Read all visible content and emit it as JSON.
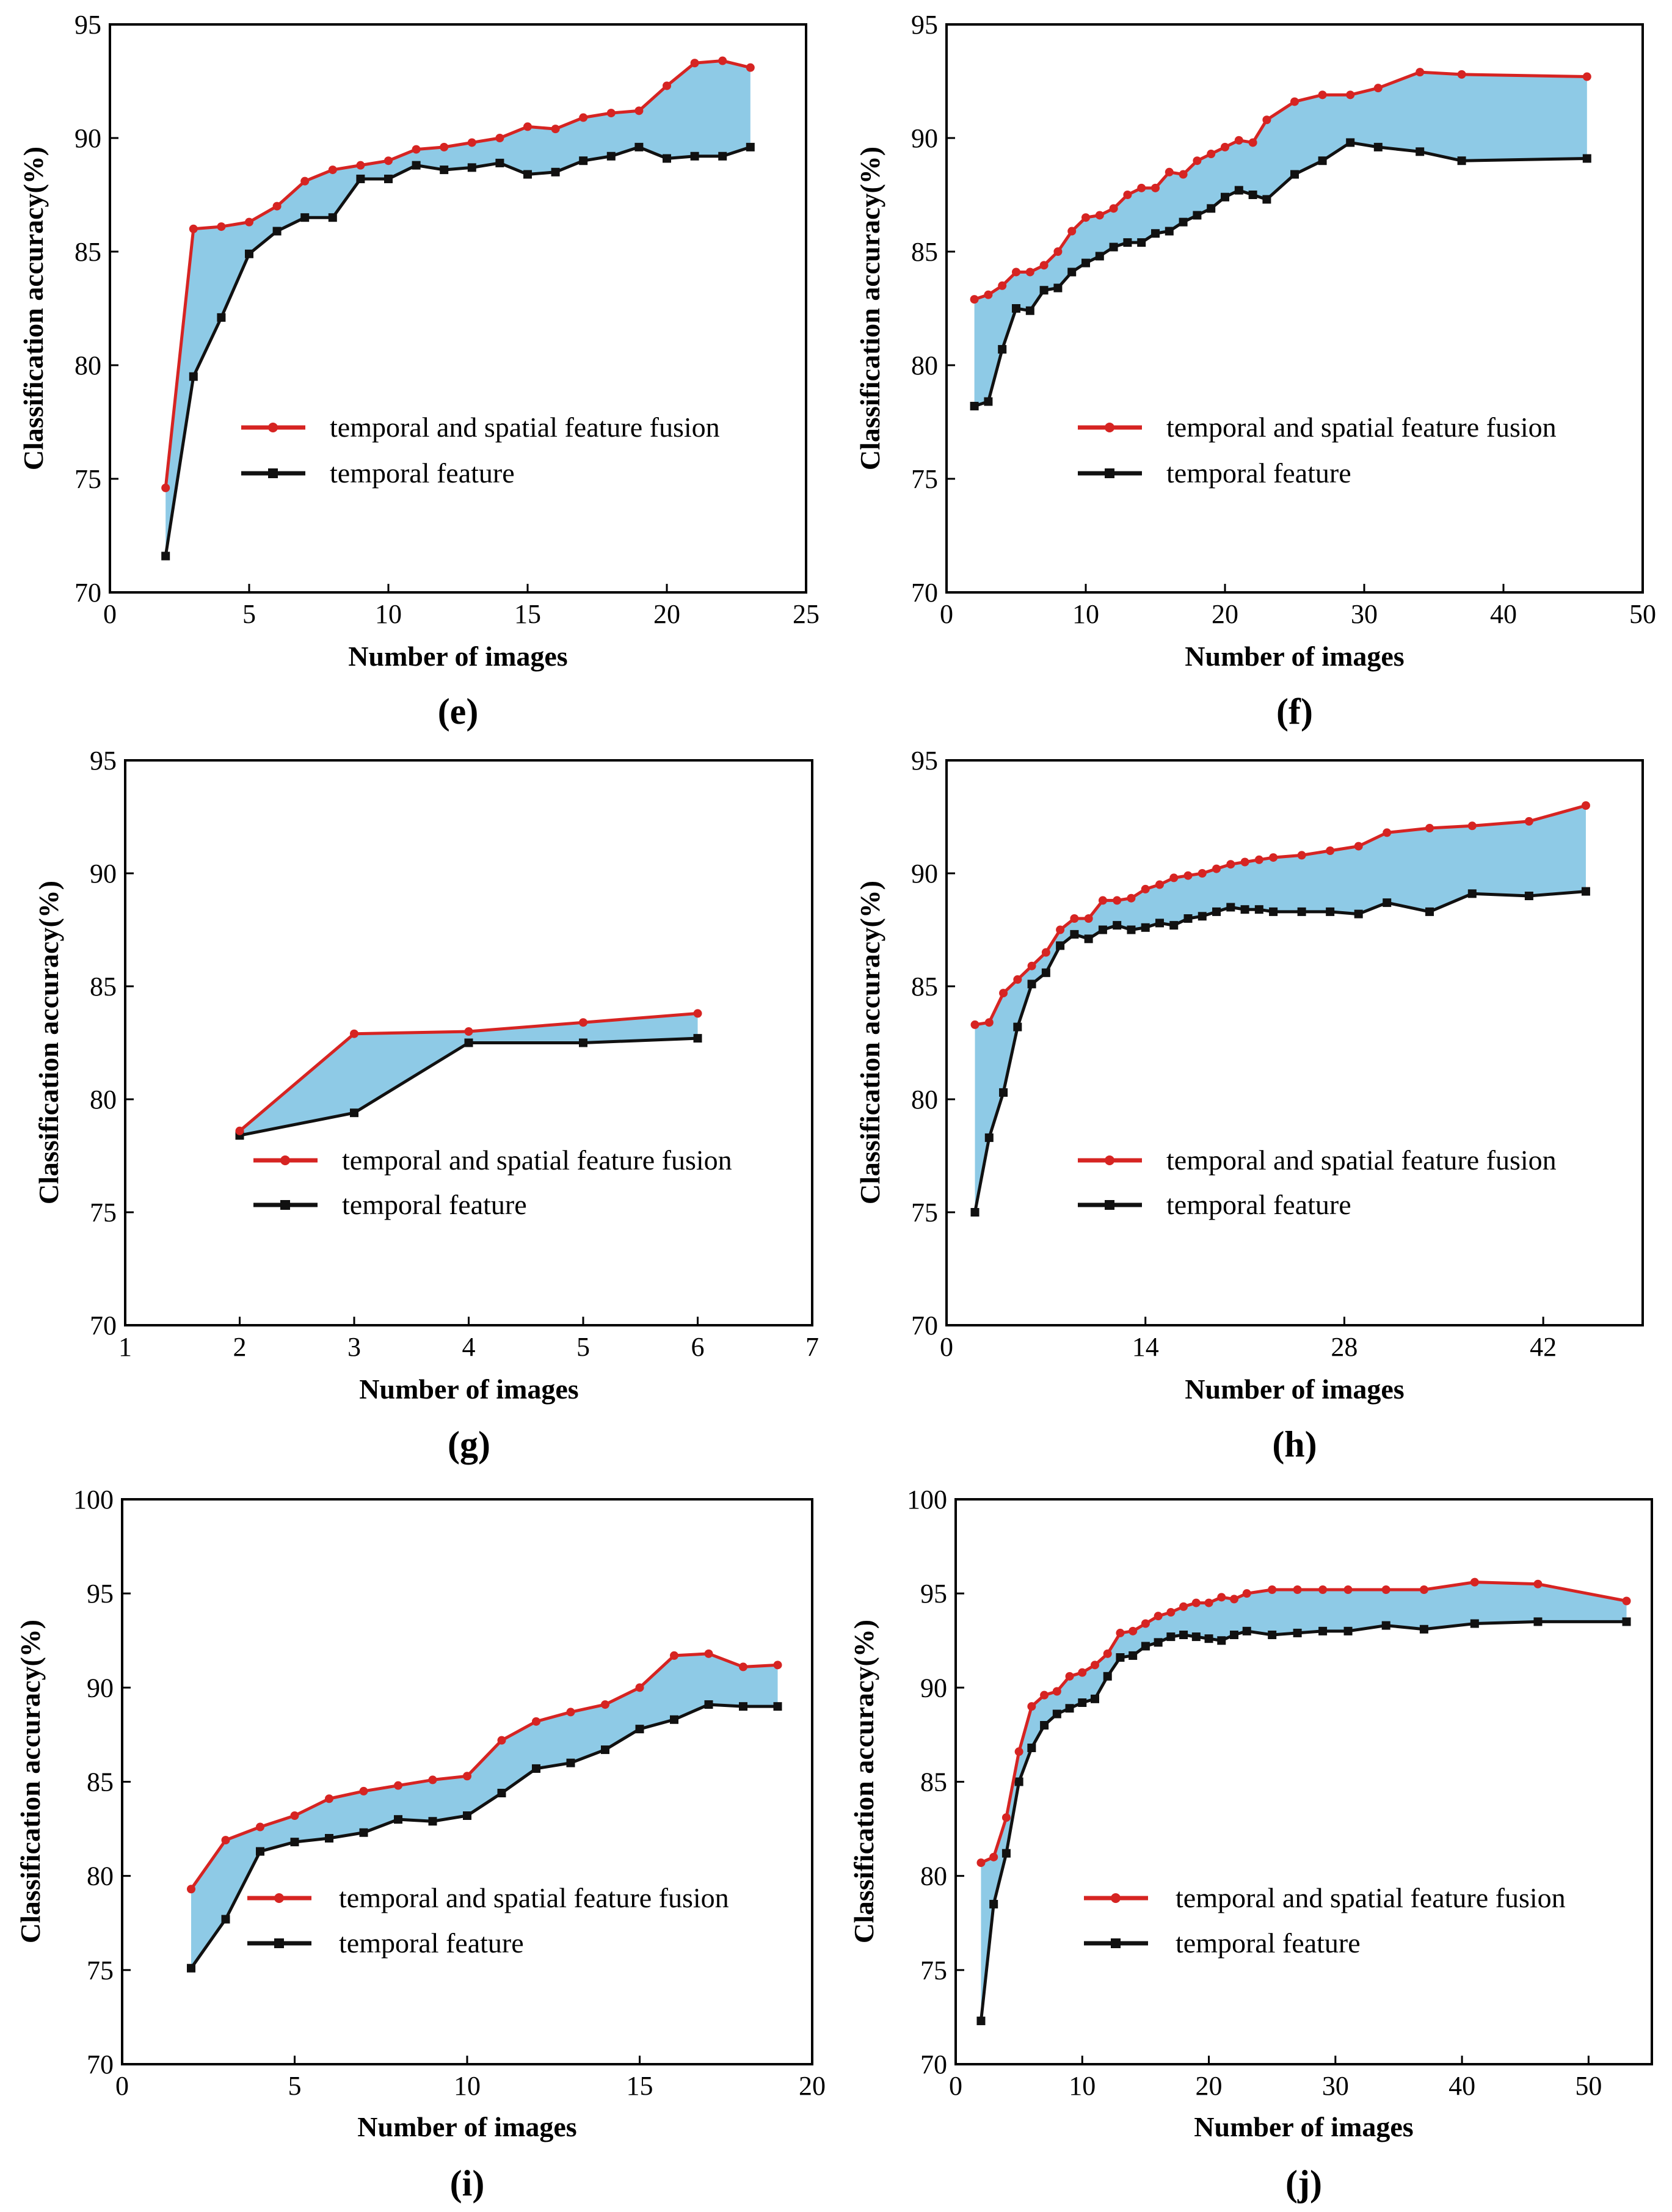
{
  "figure": {
    "colors": {
      "fusion": "#d62422",
      "temporal": "#111111",
      "band": "#8ecae6",
      "frame": "#000000"
    }
  },
  "chart_data": [
    {
      "id": "e",
      "type": "line",
      "caption": "(e)",
      "xlabel": "Number of images",
      "ylabel": "Classification accuracy(%)",
      "xlim": [
        0,
        25
      ],
      "ylim": [
        70,
        95
      ],
      "xticks": [
        0,
        5,
        10,
        15,
        20,
        25
      ],
      "yticks": [
        70,
        75,
        80,
        85,
        90,
        95
      ],
      "grid": false,
      "legend_position": "lower-center",
      "fill_between": true,
      "series": [
        {
          "name": "temporal and spatial feature fusion",
          "marker": "circle",
          "x": [
            2,
            3,
            4,
            5,
            6,
            7,
            8,
            9,
            10,
            11,
            12,
            13,
            14,
            15,
            16,
            17,
            18,
            19,
            20,
            21,
            22,
            23
          ],
          "y": [
            74.6,
            86.0,
            86.1,
            86.3,
            87.0,
            88.1,
            88.6,
            88.8,
            89.0,
            89.5,
            89.6,
            89.8,
            90.0,
            90.5,
            90.4,
            90.9,
            91.1,
            91.2,
            92.3,
            93.3,
            93.4,
            93.1
          ]
        },
        {
          "name": "temporal feature",
          "marker": "square",
          "x": [
            2,
            3,
            4,
            5,
            6,
            7,
            8,
            9,
            10,
            11,
            12,
            13,
            14,
            15,
            16,
            17,
            18,
            19,
            20,
            21,
            22,
            23
          ],
          "y": [
            71.6,
            79.5,
            82.1,
            84.9,
            85.9,
            86.5,
            86.5,
            88.2,
            88.2,
            88.8,
            88.6,
            88.7,
            88.9,
            88.4,
            88.5,
            89.0,
            89.2,
            89.6,
            89.1,
            89.2,
            89.2,
            89.6
          ]
        }
      ]
    },
    {
      "id": "f",
      "type": "line",
      "caption": "(f)",
      "xlabel": "Number of images",
      "ylabel": "Classification accuracy(%)",
      "xlim": [
        0,
        50
      ],
      "ylim": [
        70,
        95
      ],
      "xticks": [
        0,
        10,
        20,
        30,
        40,
        50
      ],
      "yticks": [
        70,
        75,
        80,
        85,
        90,
        95
      ],
      "grid": false,
      "legend_position": "lower-center",
      "fill_between": true,
      "series": [
        {
          "name": "temporal and spatial feature fusion",
          "marker": "circle",
          "x": [
            2,
            3,
            4,
            5,
            6,
            7,
            8,
            9,
            10,
            11,
            12,
            13,
            14,
            15,
            16,
            17,
            18,
            19,
            20,
            21,
            22,
            23,
            25,
            27,
            29,
            31,
            34,
            37,
            46
          ],
          "y": [
            82.9,
            83.1,
            83.5,
            84.1,
            84.1,
            84.4,
            85.0,
            85.9,
            86.5,
            86.6,
            86.9,
            87.5,
            87.8,
            87.8,
            88.5,
            88.4,
            89.0,
            89.3,
            89.6,
            89.9,
            89.8,
            90.8,
            91.6,
            91.9,
            91.9,
            92.2,
            92.9,
            92.8,
            92.7
          ]
        },
        {
          "name": "temporal feature",
          "marker": "square",
          "x": [
            2,
            3,
            4,
            5,
            6,
            7,
            8,
            9,
            10,
            11,
            12,
            13,
            14,
            15,
            16,
            17,
            18,
            19,
            20,
            21,
            22,
            23,
            25,
            27,
            29,
            31,
            34,
            37,
            46
          ],
          "y": [
            78.2,
            78.4,
            80.7,
            82.5,
            82.4,
            83.3,
            83.4,
            84.1,
            84.5,
            84.8,
            85.2,
            85.4,
            85.4,
            85.8,
            85.9,
            86.3,
            86.6,
            86.9,
            87.4,
            87.7,
            87.5,
            87.3,
            88.4,
            89.0,
            89.8,
            89.6,
            89.4,
            89.0,
            89.1
          ]
        }
      ]
    },
    {
      "id": "g",
      "type": "line",
      "caption": "(g)",
      "xlabel": "Number of images",
      "ylabel": "Classification accuracy(%)",
      "xlim": [
        1,
        7
      ],
      "ylim": [
        70,
        95
      ],
      "xticks": [
        1,
        2,
        3,
        4,
        5,
        6,
        7
      ],
      "yticks": [
        70,
        75,
        80,
        85,
        90,
        95
      ],
      "grid": false,
      "legend_position": "lower-center",
      "fill_between": true,
      "series": [
        {
          "name": "temporal and spatial feature fusion",
          "marker": "circle",
          "x": [
            2,
            3,
            4,
            5,
            6
          ],
          "y": [
            78.6,
            82.9,
            83.0,
            83.4,
            83.8
          ]
        },
        {
          "name": "temporal feature",
          "marker": "square",
          "x": [
            2,
            3,
            4,
            5,
            6
          ],
          "y": [
            78.4,
            79.4,
            82.5,
            82.5,
            82.7
          ]
        }
      ]
    },
    {
      "id": "h",
      "type": "line",
      "caption": "(h)",
      "xlabel": "Number of images",
      "ylabel": "Classification accuracy(%)",
      "xlim": [
        0,
        49
      ],
      "ylim": [
        70,
        95
      ],
      "xticks": [
        0,
        14,
        28,
        42
      ],
      "yticks": [
        70,
        75,
        80,
        85,
        90,
        95
      ],
      "grid": false,
      "legend_position": "lower-center",
      "fill_between": true,
      "series": [
        {
          "name": "temporal and spatial feature fusion",
          "marker": "circle",
          "x": [
            2,
            3,
            4,
            5,
            6,
            7,
            8,
            9,
            10,
            11,
            12,
            13,
            14,
            15,
            16,
            17,
            18,
            19,
            20,
            21,
            22,
            23,
            25,
            27,
            29,
            31,
            34,
            37,
            41,
            45
          ],
          "y": [
            83.3,
            83.4,
            84.7,
            85.3,
            85.9,
            86.5,
            87.5,
            88.0,
            88.0,
            88.8,
            88.8,
            88.9,
            89.3,
            89.5,
            89.8,
            89.9,
            90.0,
            90.2,
            90.4,
            90.5,
            90.6,
            90.7,
            90.8,
            91.0,
            91.2,
            91.8,
            92.0,
            92.1,
            92.3,
            93.0
          ]
        },
        {
          "name": "temporal feature",
          "marker": "square",
          "x": [
            2,
            3,
            4,
            5,
            6,
            7,
            8,
            9,
            10,
            11,
            12,
            13,
            14,
            15,
            16,
            17,
            18,
            19,
            20,
            21,
            22,
            23,
            25,
            27,
            29,
            31,
            34,
            37,
            41,
            45
          ],
          "y": [
            75.0,
            78.3,
            80.3,
            83.2,
            85.1,
            85.6,
            86.8,
            87.3,
            87.1,
            87.5,
            87.7,
            87.5,
            87.6,
            87.8,
            87.7,
            88.0,
            88.1,
            88.3,
            88.5,
            88.4,
            88.4,
            88.3,
            88.3,
            88.3,
            88.2,
            88.7,
            88.3,
            89.1,
            89.0,
            89.2
          ]
        }
      ]
    },
    {
      "id": "i",
      "type": "line",
      "caption": "(i)",
      "xlabel": "Number of images",
      "ylabel": "Classification accuracy(%)",
      "xlim": [
        0,
        20
      ],
      "ylim": [
        70,
        100
      ],
      "xticks": [
        0,
        5,
        10,
        15,
        20
      ],
      "yticks": [
        70,
        75,
        80,
        85,
        90,
        95,
        100
      ],
      "grid": false,
      "legend_position": "lower-center",
      "fill_between": true,
      "series": [
        {
          "name": "temporal and spatial feature fusion",
          "marker": "circle",
          "x": [
            2,
            3,
            4,
            5,
            6,
            7,
            8,
            9,
            10,
            11,
            12,
            13,
            14,
            15,
            16,
            17,
            18,
            19
          ],
          "y": [
            79.3,
            81.9,
            82.6,
            83.2,
            84.1,
            84.5,
            84.8,
            85.1,
            85.3,
            87.2,
            88.2,
            88.7,
            89.1,
            90.0,
            91.7,
            91.8,
            91.1,
            91.2
          ]
        },
        {
          "name": "temporal feature",
          "marker": "square",
          "x": [
            2,
            3,
            4,
            5,
            6,
            7,
            8,
            9,
            10,
            11,
            12,
            13,
            14,
            15,
            16,
            17,
            18,
            19
          ],
          "y": [
            75.1,
            77.7,
            81.3,
            81.8,
            82.0,
            82.3,
            83.0,
            82.9,
            83.2,
            84.4,
            85.7,
            86.0,
            86.7,
            87.8,
            88.3,
            89.1,
            89.0,
            89.0
          ]
        }
      ]
    },
    {
      "id": "j",
      "type": "line",
      "caption": "(j)",
      "xlabel": "Number of images",
      "ylabel": "Classification accuracy(%)",
      "xlim": [
        0,
        55
      ],
      "ylim": [
        70,
        100
      ],
      "xticks": [
        0,
        10,
        20,
        30,
        40,
        50
      ],
      "yticks": [
        70,
        75,
        80,
        85,
        90,
        95,
        100
      ],
      "grid": false,
      "legend_position": "lower-center",
      "fill_between": true,
      "series": [
        {
          "name": "temporal and spatial feature fusion",
          "marker": "circle",
          "x": [
            2,
            3,
            4,
            5,
            6,
            7,
            8,
            9,
            10,
            11,
            12,
            13,
            14,
            15,
            16,
            17,
            18,
            19,
            20,
            21,
            22,
            23,
            25,
            27,
            29,
            31,
            34,
            37,
            41,
            46,
            53
          ],
          "y": [
            80.7,
            81.0,
            83.1,
            86.6,
            89.0,
            89.6,
            89.8,
            90.6,
            90.8,
            91.2,
            91.8,
            92.9,
            93.0,
            93.4,
            93.8,
            94.0,
            94.3,
            94.5,
            94.5,
            94.8,
            94.7,
            95.0,
            95.2,
            95.2,
            95.2,
            95.2,
            95.2,
            95.2,
            95.6,
            95.5,
            94.6
          ]
        },
        {
          "name": "temporal feature",
          "marker": "square",
          "x": [
            2,
            3,
            4,
            5,
            6,
            7,
            8,
            9,
            10,
            11,
            12,
            13,
            14,
            15,
            16,
            17,
            18,
            19,
            20,
            21,
            22,
            23,
            25,
            27,
            29,
            31,
            34,
            37,
            41,
            46,
            53
          ],
          "y": [
            72.3,
            78.5,
            81.2,
            85.0,
            86.8,
            88.0,
            88.6,
            88.9,
            89.2,
            89.4,
            90.6,
            91.6,
            91.7,
            92.2,
            92.4,
            92.7,
            92.8,
            92.7,
            92.6,
            92.5,
            92.8,
            93.0,
            92.8,
            92.9,
            93.0,
            93.0,
            93.3,
            93.1,
            93.4,
            93.5,
            93.5
          ]
        }
      ]
    }
  ]
}
